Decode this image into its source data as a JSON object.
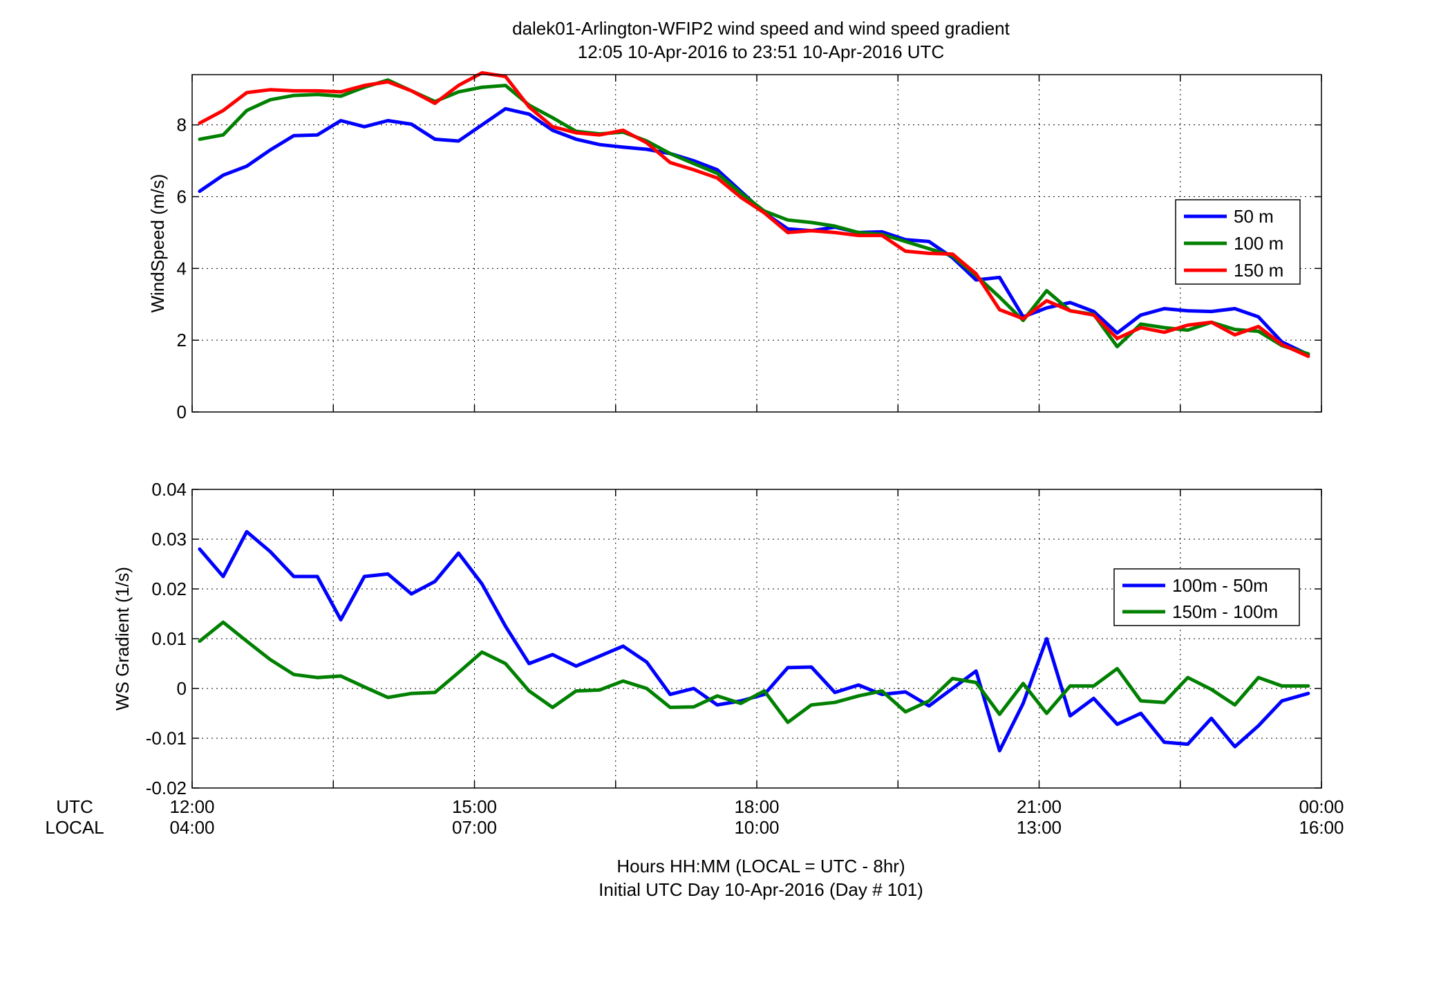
{
  "figure": {
    "title_line1": "dalek01-Arlington-WFIP2  wind speed and wind speed gradient",
    "title_line2": "12:05 10-Apr-2016 to 23:51 10-Apr-2016  UTC",
    "xlabel_line1": "Hours HH:MM  (LOCAL = UTC - 8hr)",
    "xlabel_line2": "Initial UTC Day 10-Apr-2016 (Day # 101)",
    "utc_row_label": "UTC",
    "local_row_label": "LOCAL",
    "utc_ticks": [
      "12:00",
      "15:00",
      "18:00",
      "21:00",
      "00:00"
    ],
    "local_ticks": [
      "04:00",
      "07:00",
      "10:00",
      "13:00",
      "16:00"
    ]
  },
  "chart_data": [
    {
      "type": "line",
      "ylabel": "WindSpeed (m/s)",
      "xlim": [
        12,
        24
      ],
      "ylim": [
        0,
        9.4
      ],
      "yticks": [
        0,
        2,
        4,
        6,
        8
      ],
      "ytick_labels": [
        "0",
        "2",
        "4",
        "6",
        "8"
      ],
      "x_unit": "UTC hours",
      "x": [
        12.08,
        12.33,
        12.58,
        12.83,
        13.08,
        13.33,
        13.58,
        13.83,
        14.08,
        14.33,
        14.58,
        14.83,
        15.08,
        15.33,
        15.58,
        15.83,
        16.08,
        16.33,
        16.58,
        16.83,
        17.08,
        17.33,
        17.58,
        17.83,
        18.08,
        18.33,
        18.58,
        18.83,
        19.08,
        19.33,
        19.58,
        19.83,
        20.08,
        20.33,
        20.58,
        20.83,
        21.08,
        21.33,
        21.58,
        21.83,
        22.08,
        22.33,
        22.58,
        22.83,
        23.08,
        23.33,
        23.58,
        23.86
      ],
      "legend_position": "right",
      "series": [
        {
          "name": "50 m",
          "color": "#0000ff",
          "values": [
            6.15,
            6.6,
            6.85,
            7.3,
            7.7,
            7.72,
            8.12,
            7.95,
            8.12,
            8.02,
            7.6,
            7.55,
            8.0,
            8.45,
            8.3,
            7.85,
            7.6,
            7.45,
            7.38,
            7.32,
            7.2,
            7.0,
            6.75,
            6.15,
            5.55,
            5.1,
            5.05,
            5.15,
            5.0,
            5.02,
            4.8,
            4.75,
            4.3,
            3.68,
            3.75,
            2.65,
            2.9,
            3.05,
            2.8,
            2.2,
            2.7,
            2.88,
            2.82,
            2.8,
            2.88,
            2.65,
            1.95,
            1.6
          ]
        },
        {
          "name": "100 m",
          "color": "#008000",
          "values": [
            7.6,
            7.72,
            8.4,
            8.7,
            8.82,
            8.85,
            8.8,
            9.05,
            9.25,
            8.95,
            8.65,
            8.92,
            9.05,
            9.1,
            8.55,
            8.2,
            7.82,
            7.75,
            7.8,
            7.55,
            7.2,
            6.92,
            6.65,
            6.1,
            5.6,
            5.35,
            5.28,
            5.18,
            5.0,
            4.95,
            4.75,
            4.55,
            4.35,
            3.8,
            3.2,
            2.55,
            3.38,
            2.82,
            2.72,
            1.82,
            2.45,
            2.35,
            2.28,
            2.5,
            2.3,
            2.25,
            1.85,
            1.62
          ]
        },
        {
          "name": "150 m",
          "color": "#ff0000",
          "values": [
            8.05,
            8.4,
            8.9,
            8.98,
            8.95,
            8.95,
            8.92,
            9.1,
            9.2,
            8.95,
            8.6,
            9.1,
            9.45,
            9.35,
            8.5,
            7.95,
            7.78,
            7.72,
            7.85,
            7.5,
            6.95,
            6.75,
            6.52,
            5.98,
            5.55,
            5.0,
            5.05,
            5.0,
            4.92,
            4.92,
            4.48,
            4.42,
            4.4,
            3.85,
            2.85,
            2.6,
            3.1,
            2.82,
            2.7,
            2.05,
            2.35,
            2.22,
            2.42,
            2.5,
            2.15,
            2.38,
            1.88,
            1.55
          ]
        }
      ]
    },
    {
      "type": "line",
      "ylabel": "WS Gradient (1/s)",
      "xlim": [
        12,
        24
      ],
      "ylim": [
        -0.02,
        0.04
      ],
      "yticks": [
        -0.02,
        -0.01,
        0,
        0.01,
        0.02,
        0.03,
        0.04
      ],
      "ytick_labels": [
        "-0.02",
        "-0.01",
        "0",
        "0.01",
        "0.02",
        "0.03",
        "0.04"
      ],
      "x_unit": "UTC hours",
      "x": [
        12.08,
        12.33,
        12.58,
        12.83,
        13.08,
        13.33,
        13.58,
        13.83,
        14.08,
        14.33,
        14.58,
        14.83,
        15.08,
        15.33,
        15.58,
        15.83,
        16.08,
        16.33,
        16.58,
        16.83,
        17.08,
        17.33,
        17.58,
        17.83,
        18.08,
        18.33,
        18.58,
        18.83,
        19.08,
        19.33,
        19.58,
        19.83,
        20.08,
        20.33,
        20.58,
        20.83,
        21.08,
        21.33,
        21.58,
        21.83,
        22.08,
        22.33,
        22.58,
        22.83,
        23.08,
        23.33,
        23.58,
        23.86
      ],
      "legend_position": "right",
      "series": [
        {
          "name": "100m - 50m",
          "color": "#0000ff",
          "values": [
            0.028,
            0.0225,
            0.0315,
            0.0275,
            0.0225,
            0.0225,
            0.0138,
            0.0225,
            0.023,
            0.019,
            0.0215,
            0.0272,
            0.021,
            0.0125,
            0.005,
            0.0068,
            0.0045,
            0.0065,
            0.0085,
            0.0053,
            -0.0012,
            0.0,
            -0.0033,
            -0.0025,
            -0.0012,
            0.0042,
            0.0043,
            -0.0008,
            0.0007,
            -0.0012,
            -0.0007,
            -0.0035,
            0.0,
            0.0035,
            -0.0125,
            -0.003,
            0.01,
            -0.0055,
            -0.002,
            -0.0072,
            -0.005,
            -0.0108,
            -0.0112,
            -0.006,
            -0.0117,
            -0.0075,
            -0.0025,
            -0.001
          ]
        },
        {
          "name": "150m - 100m",
          "color": "#008000",
          "values": [
            0.0095,
            0.0133,
            0.0095,
            0.0058,
            0.0028,
            0.0022,
            0.0025,
            0.0003,
            -0.0018,
            -0.001,
            -0.0008,
            0.0032,
            0.0073,
            0.005,
            -0.0005,
            -0.0038,
            -0.0005,
            -0.0003,
            0.0015,
            0.0,
            -0.0038,
            -0.0037,
            -0.0015,
            -0.003,
            -0.0005,
            -0.0068,
            -0.0033,
            -0.0028,
            -0.0015,
            -0.0005,
            -0.0047,
            -0.0025,
            0.002,
            0.0012,
            -0.0052,
            0.001,
            -0.005,
            0.0005,
            0.0005,
            0.004,
            -0.0025,
            -0.0028,
            0.0022,
            -0.0002,
            -0.0033,
            0.0022,
            0.0005,
            0.0005
          ]
        }
      ]
    }
  ]
}
